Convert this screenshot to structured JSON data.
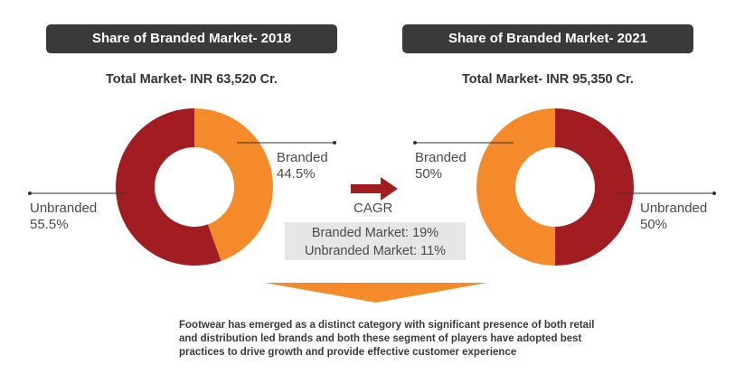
{
  "colors": {
    "branded": "#f58a2a",
    "unbranded": "#a11d21",
    "header_bg": "#3a3a3a",
    "cagr_box_bg": "#e6e6e6"
  },
  "chart_data": [
    {
      "type": "pie",
      "title": "Share of Branded Market- 2018",
      "subtitle": "Total Market- INR 63,520 Cr.",
      "categories": [
        "Branded",
        "Unbranded"
      ],
      "values": [
        44.5,
        55.5
      ],
      "value_labels": [
        "44.5%",
        "55.5%"
      ],
      "donut": true
    },
    {
      "type": "pie",
      "title": "Share of Branded Market- 2021",
      "subtitle": "Total Market- INR 95,350 Cr.",
      "categories": [
        "Branded",
        "Unbranded"
      ],
      "values": [
        50,
        50
      ],
      "value_labels": [
        "50%",
        "50%"
      ],
      "donut": true
    }
  ],
  "cagr": {
    "label": "CAGR",
    "branded": "Branded Market: 19%",
    "unbranded": "Unbranded Market: 11%"
  },
  "footer_text": "Footwear has emerged as a distinct category with significant presence of both retail and  distribution led brands and both these segment of players have adopted best practices to drive  growth and provide effective customer experience"
}
